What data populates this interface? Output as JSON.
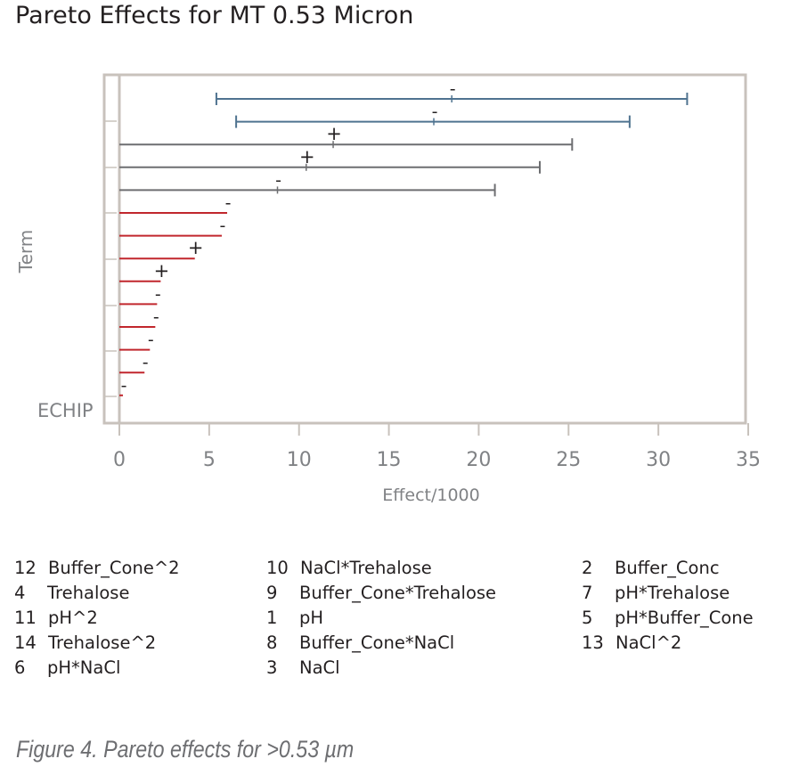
{
  "title": "Pareto Effects for MT 0.53 Micron",
  "chart_data": {
    "type": "pareto-bar",
    "title": "Pareto Effects for MT 0.53 Micron",
    "xlabel": "Effect/1000",
    "ylabel": "Term",
    "xlim": [
      0,
      35
    ],
    "xticks": [
      "0",
      "5",
      "10",
      "15",
      "20",
      "25",
      "30",
      "35"
    ],
    "watermark": "ECHIP",
    "colors": {
      "blue": "#4f7390",
      "gray": "#6d6e71",
      "red": "#c1272d",
      "frame": "#c8c2bc",
      "axis_text": "#808285"
    },
    "terms": [
      {
        "sign": "-",
        "effect": 18.5,
        "ci": [
          5.4,
          31.6
        ],
        "color": "blue"
      },
      {
        "sign": "-",
        "effect": 17.5,
        "ci": [
          6.5,
          28.4
        ],
        "color": "blue"
      },
      {
        "sign": "+",
        "effect": 11.9,
        "ci": [
          0,
          25.2
        ],
        "color": "gray"
      },
      {
        "sign": "+",
        "effect": 10.4,
        "ci": [
          0,
          23.4
        ],
        "color": "gray"
      },
      {
        "sign": "-",
        "effect": 8.8,
        "ci": [
          0,
          20.9
        ],
        "color": "gray"
      },
      {
        "sign": "-",
        "effect": 6.0,
        "color": "red"
      },
      {
        "sign": "-",
        "effect": 5.7,
        "color": "red"
      },
      {
        "sign": "+",
        "effect": 4.2,
        "color": "red"
      },
      {
        "sign": "+",
        "effect": 2.3,
        "color": "red"
      },
      {
        "sign": "-",
        "effect": 2.1,
        "color": "red"
      },
      {
        "sign": "-",
        "effect": 2.0,
        "color": "red"
      },
      {
        "sign": "-",
        "effect": 1.7,
        "color": "red"
      },
      {
        "sign": "-",
        "effect": 1.4,
        "color": "red"
      },
      {
        "sign": "-",
        "effect": 0.2,
        "color": "red"
      }
    ]
  },
  "legend": [
    [
      "12",
      "Buffer_Cone^2"
    ],
    [
      "4",
      "Trehalose"
    ],
    [
      "11",
      "pH^2"
    ],
    [
      "14",
      "Trehalose^2"
    ],
    [
      "6",
      "pH*NaCl"
    ],
    [
      "10",
      "NaCl*Trehalose"
    ],
    [
      "9",
      "Buffer_Cone*Trehalose"
    ],
    [
      "1",
      "pH"
    ],
    [
      "8",
      "Buffer_Cone*NaCl"
    ],
    [
      "3",
      "NaCl"
    ],
    [
      "2",
      "Buffer_Conc"
    ],
    [
      "7",
      "pH*Trehalose"
    ],
    [
      "5",
      "pH*Buffer_Cone"
    ],
    [
      "13",
      "NaCl^2"
    ]
  ],
  "caption": "Figure 4. Pareto effects for >0.53 µm"
}
